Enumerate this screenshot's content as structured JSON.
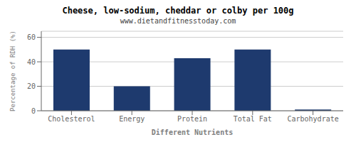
{
  "chart_data": {
    "type": "bar",
    "title": "Cheese, low-sodium, cheddar or colby per 100g",
    "subtitle": "www.dietandfitnesstoday.com",
    "categories": [
      "Cholesterol",
      "Energy",
      "Protein",
      "Total Fat",
      "Carbohydrate"
    ],
    "values": [
      50,
      20,
      43,
      50,
      1
    ],
    "color": "#1e3a6e",
    "xlabel": "Different Nutrients",
    "ylabel": "Percentage of RDH (%)",
    "ylim": [
      0,
      65
    ],
    "yticks": [
      0,
      20,
      40,
      60
    ],
    "grid": true
  }
}
